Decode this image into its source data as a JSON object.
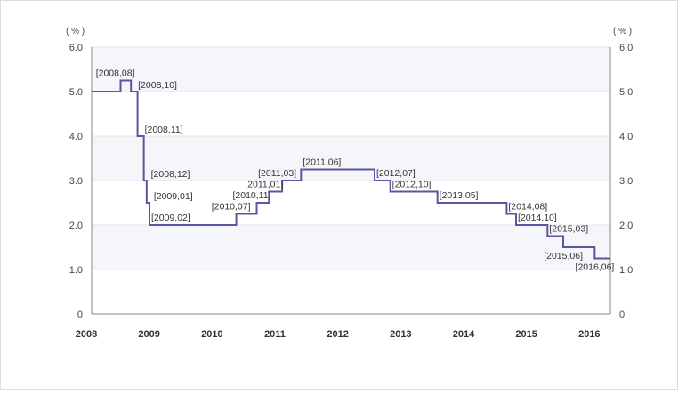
{
  "chart_data": {
    "type": "line",
    "step": true,
    "left_unit": "( % )",
    "right_unit": "( % )",
    "x": [
      2008.0,
      2008.46,
      2008.625,
      2008.73,
      2008.83,
      2008.875,
      2008.92,
      2008.96,
      2010.3,
      2010.625,
      2010.82,
      2011.03,
      2011.33,
      2011.75,
      2012.5,
      2012.75,
      2013.5,
      2014.6,
      2014.75,
      2015.25,
      2015.5,
      2016.0,
      2016.25
    ],
    "values": [
      5.0,
      5.25,
      5.0,
      4.0,
      3.0,
      2.5,
      2.0,
      2.0,
      2.25,
      2.5,
      2.75,
      3.0,
      3.25,
      3.25,
      3.0,
      2.75,
      2.5,
      2.25,
      2.0,
      1.75,
      1.5,
      1.25,
      1.25
    ],
    "xlim": [
      2008,
      2016.25
    ],
    "ylim": [
      0,
      6
    ],
    "y_ticks": [
      "0",
      "1.0",
      "2.0",
      "3.0",
      "4.0",
      "5.0",
      "6.0"
    ],
    "x_ticks": [
      "2008",
      "2009",
      "2010",
      "2011",
      "2012",
      "2013",
      "2014",
      "2015",
      "2016"
    ],
    "annotations": [
      {
        "label": "[2008,08]",
        "x": 2008.46,
        "y": 5.25,
        "pos": "above-left"
      },
      {
        "label": "[2008,10]",
        "x": 2008.625,
        "y": 5.0,
        "pos": "right"
      },
      {
        "label": "[2008,11]",
        "x": 2008.73,
        "y": 4.0,
        "pos": "right"
      },
      {
        "label": "[2008,12]",
        "x": 2008.83,
        "y": 3.0,
        "pos": "right"
      },
      {
        "label": "[2009,01]",
        "x": 2008.875,
        "y": 2.5,
        "pos": "right"
      },
      {
        "label": "[2009,02]",
        "x": 2008.92,
        "y": 2.0,
        "pos": "above-right"
      },
      {
        "label": "[2010,07]",
        "x": 2010.3,
        "y": 2.25,
        "pos": "above-left"
      },
      {
        "label": "[2010,11]",
        "x": 2010.625,
        "y": 2.5,
        "pos": "above-left"
      },
      {
        "label": "[2011,01]",
        "x": 2010.82,
        "y": 2.75,
        "pos": "above-left"
      },
      {
        "label": "[2011,03]",
        "x": 2011.03,
        "y": 3.0,
        "pos": "above-left"
      },
      {
        "label": "[2011,06]",
        "x": 2011.33,
        "y": 3.25,
        "pos": "above-right"
      },
      {
        "label": "[2012,07]",
        "x": 2012.5,
        "y": 3.0,
        "pos": "above-right"
      },
      {
        "label": "[2012,10]",
        "x": 2012.75,
        "y": 2.75,
        "pos": "above-right"
      },
      {
        "label": "[2013,05]",
        "x": 2013.5,
        "y": 2.5,
        "pos": "above-right"
      },
      {
        "label": "[2014,08]",
        "x": 2014.6,
        "y": 2.25,
        "pos": "above-right"
      },
      {
        "label": "[2014,10]",
        "x": 2014.75,
        "y": 2.0,
        "pos": "above-right"
      },
      {
        "label": "[2015,03]",
        "x": 2015.25,
        "y": 1.75,
        "pos": "above-right"
      },
      {
        "label": "[2015,06]",
        "x": 2015.5,
        "y": 1.5,
        "pos": "below-left"
      },
      {
        "label": "[2016,06]",
        "x": 2016.0,
        "y": 1.25,
        "pos": "below-left"
      }
    ],
    "colors": {
      "line": "#5c55a0",
      "band": "#f5f6fa",
      "grid": "#e4e4ec",
      "axis": "#888888",
      "frame": "#dcdcdc"
    },
    "grid": true,
    "legend": "none"
  }
}
